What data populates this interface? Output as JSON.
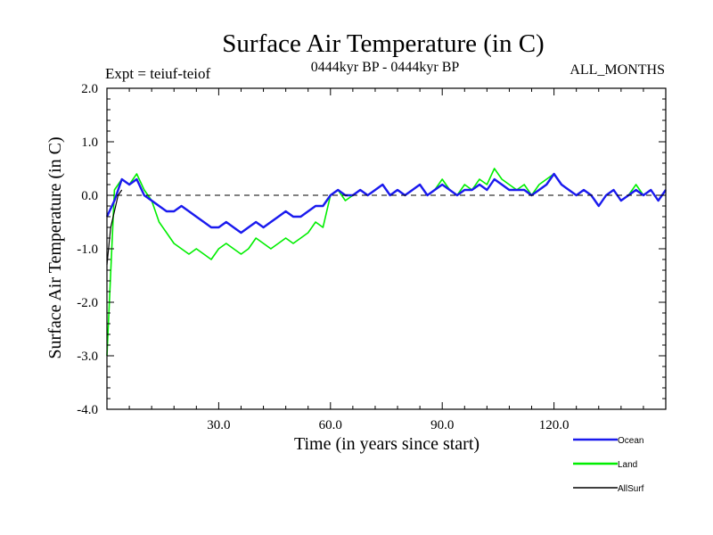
{
  "chart_data": {
    "type": "line",
    "title": "Surface Air Temperature (in C)",
    "subtitle_left": "Expt = teiuf-teiof",
    "subtitle_center": "0444kyr BP - 0444kyr BP",
    "subtitle_right": "ALL_MONTHS",
    "xlabel": "Time (in years since start)",
    "ylabel": "Surface Air Temperature (in C)",
    "xlim": [
      0,
      150
    ],
    "ylim": [
      -4.0,
      2.0
    ],
    "x_ticks": [
      30,
      60,
      90,
      120
    ],
    "x_tick_labels": [
      "30.0",
      "60.0",
      "90.0",
      "120.0"
    ],
    "y_ticks": [
      -4,
      -3,
      -2,
      -1,
      0,
      1,
      2
    ],
    "y_tick_labels": [
      "-4.0",
      "-3.0",
      "-2.0",
      "-1.0",
      "0.0",
      "1.0",
      "2.0"
    ],
    "reference_line": 0.0,
    "series": [
      {
        "name": "Land",
        "color": "#00ee00",
        "x": [
          0,
          2,
          4,
          6,
          8,
          10,
          12,
          14,
          16,
          18,
          20,
          22,
          24,
          26,
          28,
          30,
          32,
          34,
          36,
          38,
          40,
          42,
          44,
          46,
          48,
          50,
          52,
          54,
          56,
          58,
          60,
          62,
          64,
          66,
          68,
          70,
          72,
          74,
          76,
          78,
          80,
          82,
          84,
          86,
          88,
          90,
          92,
          94,
          96,
          98,
          100,
          102,
          104,
          106,
          108,
          110,
          112,
          114,
          116,
          118,
          120,
          122,
          124,
          126,
          128,
          130,
          132,
          134,
          136,
          138,
          140,
          142,
          144,
          146,
          148,
          150
        ],
        "values": [
          -3.0,
          0.1,
          0.3,
          0.2,
          0.4,
          0.1,
          -0.1,
          -0.5,
          -0.7,
          -0.9,
          -1.0,
          -1.1,
          -1.0,
          -1.1,
          -1.2,
          -1.0,
          -0.9,
          -1.0,
          -1.1,
          -1.0,
          -0.8,
          -0.9,
          -1.0,
          -0.9,
          -0.8,
          -0.9,
          -0.8,
          -0.7,
          -0.5,
          -0.6,
          0.0,
          0.1,
          -0.1,
          0.0,
          0.1,
          0.0,
          0.1,
          0.2,
          0.0,
          0.1,
          0.0,
          0.1,
          0.2,
          0.0,
          0.1,
          0.3,
          0.1,
          0.0,
          0.2,
          0.1,
          0.3,
          0.2,
          0.5,
          0.3,
          0.2,
          0.1,
          0.2,
          0.0,
          0.2,
          0.3,
          0.4,
          0.2,
          0.1,
          0.0,
          0.1,
          0.0,
          -0.2,
          0.0,
          0.1,
          -0.1,
          0.0,
          0.2,
          0.0,
          0.1,
          -0.1,
          0.1
        ]
      },
      {
        "name": "Ocean",
        "color": "#1a1aee",
        "x": [
          0,
          2,
          4,
          6,
          8,
          10,
          12,
          14,
          16,
          18,
          20,
          22,
          24,
          26,
          28,
          30,
          32,
          34,
          36,
          38,
          40,
          42,
          44,
          46,
          48,
          50,
          52,
          54,
          56,
          58,
          60,
          62,
          64,
          66,
          68,
          70,
          72,
          74,
          76,
          78,
          80,
          82,
          84,
          86,
          88,
          90,
          92,
          94,
          96,
          98,
          100,
          102,
          104,
          106,
          108,
          110,
          112,
          114,
          116,
          118,
          120,
          122,
          124,
          126,
          128,
          130,
          132,
          134,
          136,
          138,
          140,
          142,
          144,
          146,
          148,
          150
        ],
        "values": [
          -0.4,
          -0.1,
          0.3,
          0.2,
          0.3,
          0.0,
          -0.1,
          -0.2,
          -0.3,
          -0.3,
          -0.2,
          -0.3,
          -0.4,
          -0.5,
          -0.6,
          -0.6,
          -0.5,
          -0.6,
          -0.7,
          -0.6,
          -0.5,
          -0.6,
          -0.5,
          -0.4,
          -0.3,
          -0.4,
          -0.4,
          -0.3,
          -0.2,
          -0.2,
          0.0,
          0.1,
          0.0,
          0.0,
          0.1,
          0.0,
          0.1,
          0.2,
          0.0,
          0.1,
          0.0,
          0.1,
          0.2,
          0.0,
          0.1,
          0.2,
          0.1,
          0.0,
          0.1,
          0.1,
          0.2,
          0.1,
          0.3,
          0.2,
          0.1,
          0.1,
          0.1,
          0.0,
          0.1,
          0.2,
          0.4,
          0.2,
          0.1,
          0.0,
          0.1,
          0.0,
          -0.2,
          0.0,
          0.1,
          -0.1,
          0.0,
          0.1,
          0.0,
          0.1,
          -0.1,
          0.1
        ]
      },
      {
        "name": "AllSurf",
        "color": "#000000",
        "x": [
          0,
          1,
          2,
          3,
          4
        ],
        "values": [
          -1.3,
          -0.6,
          -0.3,
          0.0,
          0.1
        ]
      }
    ],
    "legend": [
      {
        "name": "Ocean",
        "color": "#1a1aee"
      },
      {
        "name": "Land",
        "color": "#00ee00"
      },
      {
        "name": "AllSurf",
        "color": "#000000"
      }
    ]
  }
}
